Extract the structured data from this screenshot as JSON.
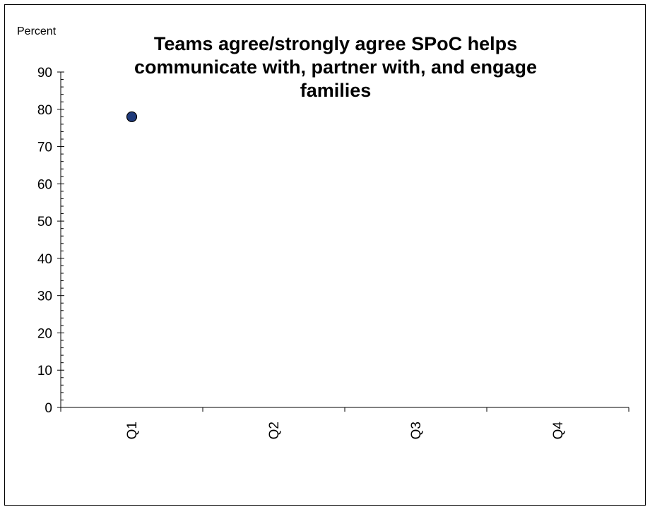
{
  "chart_data": {
    "type": "scatter",
    "title": "Teams agree/strongly agree SPoC helps communicate with, partner with, and engage families",
    "ylabel": "Percent",
    "xlabel": "",
    "categories": [
      "Q1",
      "Q2",
      "Q3",
      "Q4"
    ],
    "series": [
      {
        "values": [
          78,
          null,
          null,
          null
        ]
      }
    ],
    "ylim": [
      0,
      90
    ],
    "yticks": [
      0,
      10,
      20,
      30,
      40,
      50,
      60,
      70,
      80,
      90
    ],
    "grid": false,
    "legend": "none",
    "colors": {
      "marker": "#1f3a7a",
      "marker_edge": "#000000",
      "axis": "#000000"
    }
  }
}
